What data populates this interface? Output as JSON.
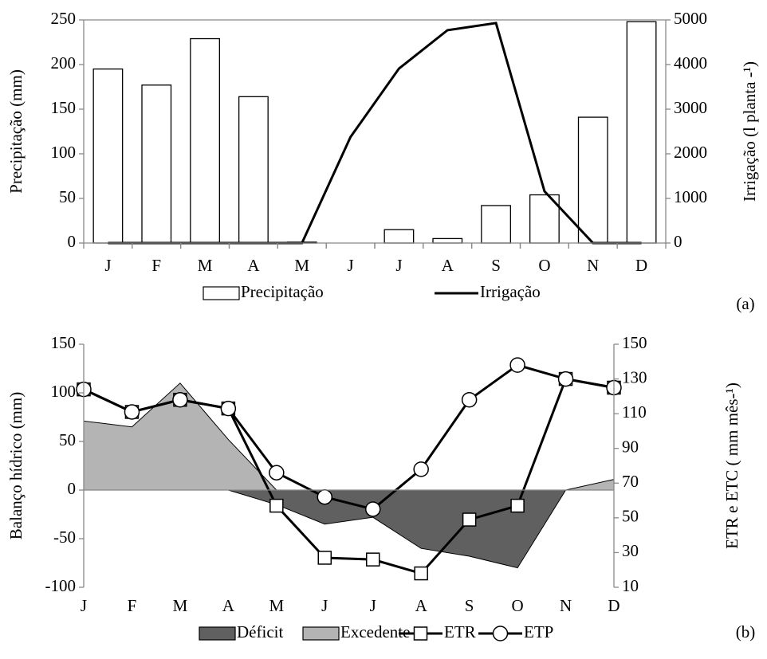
{
  "chart_data": [
    {
      "type": "combo",
      "label": "(a)",
      "categories": [
        "J",
        "F",
        "M",
        "A",
        "M",
        "J",
        "J",
        "A",
        "S",
        "O",
        "N",
        "D"
      ],
      "ylabel": "Precipitação (mm)",
      "y2label": "Irrigação (l planta -¹)",
      "ylim": [
        0,
        250
      ],
      "yticks": [
        0,
        50,
        100,
        150,
        200,
        250
      ],
      "y2lim": [
        0,
        5000
      ],
      "y2ticks": [
        0,
        1000,
        2000,
        3000,
        4000,
        5000
      ],
      "series": [
        {
          "name": "Precipitação",
          "type": "bar",
          "color": "#ffffff",
          "values": [
            195,
            177,
            229,
            164,
            1,
            0,
            15,
            5,
            42,
            54,
            141,
            248
          ]
        },
        {
          "name": "Irrigação",
          "type": "line",
          "axis": "y2",
          "color": "#000000",
          "values": [
            0,
            0,
            0,
            0,
            0,
            2375,
            3910,
            4770,
            4930,
            1160,
            0,
            0
          ]
        }
      ]
    },
    {
      "type": "area",
      "label": "(b)",
      "categories": [
        "J",
        "F",
        "M",
        "A",
        "M",
        "J",
        "J",
        "A",
        "S",
        "O",
        "N",
        "D"
      ],
      "ylabel": "Balanço hídrico (mm)",
      "y2label": "ETR e ETC ( mm mês-¹)",
      "ylim": [
        -100,
        150
      ],
      "yticks": [
        -100,
        -50,
        0,
        50,
        100,
        150
      ],
      "y2lim": [
        10,
        150
      ],
      "y2ticks": [
        10,
        30,
        50,
        70,
        90,
        110,
        130,
        150
      ],
      "series": [
        {
          "name": "Déficit",
          "type": "area",
          "color": "#606060",
          "values": [
            0,
            0,
            0,
            0,
            -15,
            -35,
            -28,
            -60,
            -68,
            -80,
            0,
            0
          ]
        },
        {
          "name": "Excedente",
          "type": "area",
          "color": "#b4b4b4",
          "values": [
            71,
            65,
            110,
            52,
            0,
            0,
            0,
            0,
            0,
            0,
            0,
            11
          ]
        },
        {
          "name": "ETR",
          "type": "line",
          "marker": "square",
          "axis": "y2",
          "color": "#000000",
          "values": [
            124,
            111,
            118,
            113,
            57,
            27,
            26,
            18,
            49,
            57,
            130,
            125
          ]
        },
        {
          "name": "ETP",
          "type": "line",
          "marker": "circle",
          "axis": "y2",
          "color": "#000000",
          "values": [
            124,
            111,
            118,
            113,
            76,
            62,
            55,
            78,
            118,
            138,
            130,
            125
          ]
        }
      ]
    }
  ]
}
